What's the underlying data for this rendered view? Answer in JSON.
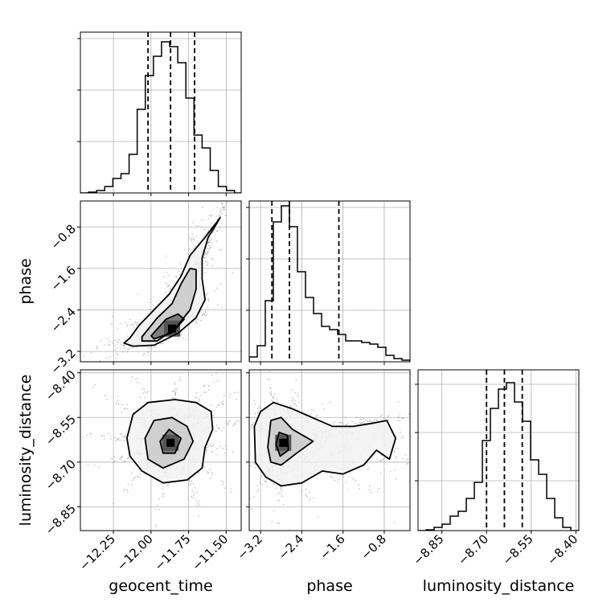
{
  "chart_data": {
    "type": "corner",
    "parameters": [
      "geocent_time",
      "phase",
      "luminosity_distance"
    ],
    "grid": true,
    "colors": {
      "hist": "#000000",
      "contour": "#000000",
      "density": "#000000",
      "samples": "#9a9a9a",
      "grid": "#b0b0b0"
    },
    "panels": [
      {
        "id": "geocent_time-hist",
        "type": "histogram",
        "x_param": "geocent_time",
        "xlim": [
          -12.47,
          -11.4
        ],
        "ylim": [
          0,
          1.0
        ],
        "y_tick_values": [
          0.32,
          0.64,
          0.96
        ],
        "bin_edges": [
          -12.47,
          -12.416,
          -12.362,
          -12.308,
          -12.254,
          -12.2,
          -12.146,
          -12.092,
          -12.038,
          -11.984,
          -11.93,
          -11.876,
          -11.822,
          -11.768,
          -11.714,
          -11.66,
          -11.606,
          -11.552,
          -11.498,
          -11.444,
          -11.4
        ],
        "counts": [
          0.0,
          0.005,
          0.015,
          0.04,
          0.09,
          0.12,
          0.24,
          0.52,
          0.73,
          0.85,
          0.94,
          0.91,
          0.81,
          0.59,
          0.36,
          0.28,
          0.14,
          0.04,
          0.015,
          0.0
        ],
        "quantiles": [
          -12.02,
          -11.87,
          -11.71
        ]
      },
      {
        "id": "geocent_time-phase",
        "type": "2d-density",
        "x_param": "geocent_time",
        "y_param": "phase",
        "xlim": [
          -12.47,
          -11.4
        ],
        "ylim": [
          -3.4,
          -0.3
        ],
        "density_peak": [
          -11.86,
          -2.76
        ],
        "contours": [
          [
            [
              -12.14,
              -2.94
            ],
            [
              -12.08,
              -2.7
            ],
            [
              -11.98,
              -2.4
            ],
            [
              -11.88,
              -2.1
            ],
            [
              -11.8,
              -1.75
            ],
            [
              -11.74,
              -1.35
            ],
            [
              -11.64,
              -1.0
            ],
            [
              -11.56,
              -0.7
            ],
            [
              -11.54,
              -0.62
            ],
            [
              -11.56,
              -0.72
            ],
            [
              -11.62,
              -1.0
            ],
            [
              -11.66,
              -1.4
            ],
            [
              -11.66,
              -1.8
            ],
            [
              -11.64,
              -2.2
            ],
            [
              -11.7,
              -2.55
            ],
            [
              -11.82,
              -2.85
            ],
            [
              -11.98,
              -3.08
            ],
            [
              -12.12,
              -3.1
            ],
            [
              -12.18,
              -3.04
            ]
          ],
          [
            [
              -12.06,
              -2.92
            ],
            [
              -11.96,
              -2.56
            ],
            [
              -11.86,
              -2.28
            ],
            [
              -11.8,
              -1.9
            ],
            [
              -11.74,
              -1.6
            ],
            [
              -11.7,
              -1.62
            ],
            [
              -11.7,
              -2.0
            ],
            [
              -11.74,
              -2.4
            ],
            [
              -11.84,
              -2.76
            ],
            [
              -11.96,
              -3.0
            ],
            [
              -12.06,
              -3.0
            ]
          ],
          [
            [
              -12.0,
              -2.9
            ],
            [
              -11.9,
              -2.58
            ],
            [
              -11.82,
              -2.48
            ],
            [
              -11.78,
              -2.58
            ],
            [
              -11.86,
              -2.84
            ],
            [
              -11.98,
              -2.96
            ]
          ]
        ]
      },
      {
        "id": "phase-hist",
        "type": "histogram",
        "x_param": "phase",
        "xlim": [
          -3.42,
          -0.3
        ],
        "ylim": [
          0,
          1.0
        ],
        "y_tick_values": [
          0.32,
          0.64,
          0.96
        ],
        "bin_edges": [
          -3.42,
          -3.264,
          -3.108,
          -2.952,
          -2.796,
          -2.64,
          -2.484,
          -2.328,
          -2.172,
          -2.016,
          -1.86,
          -1.704,
          -1.548,
          -1.392,
          -1.236,
          -1.08,
          -0.924,
          -0.768,
          -0.612,
          -0.456,
          -0.3
        ],
        "counts": [
          0.03,
          0.1,
          0.38,
          0.87,
          0.97,
          0.84,
          0.56,
          0.4,
          0.3,
          0.22,
          0.2,
          0.17,
          0.13,
          0.13,
          0.12,
          0.11,
          0.09,
          0.04,
          0.02,
          0.01
        ],
        "quantiles": [
          -2.98,
          -2.64,
          -1.68
        ]
      },
      {
        "id": "geocent_time-luminosity_distance",
        "type": "2d-density",
        "x_param": "geocent_time",
        "y_param": "luminosity_distance",
        "xlim": [
          -12.47,
          -11.4
        ],
        "ylim": [
          -8.93,
          -8.39
        ],
        "density_peak": [
          -11.87,
          -8.635
        ],
        "contours": [
          [
            [
              -12.16,
              -8.62
            ],
            [
              -12.12,
              -8.54
            ],
            [
              -12.02,
              -8.5
            ],
            [
              -11.84,
              -8.49
            ],
            [
              -11.7,
              -8.5
            ],
            [
              -11.6,
              -8.53
            ],
            [
              -11.59,
              -8.59
            ],
            [
              -11.64,
              -8.65
            ],
            [
              -11.66,
              -8.72
            ],
            [
              -11.76,
              -8.76
            ],
            [
              -11.92,
              -8.77
            ],
            [
              -12.06,
              -8.73
            ],
            [
              -12.14,
              -8.68
            ]
          ],
          [
            [
              -12.04,
              -8.62
            ],
            [
              -11.98,
              -8.56
            ],
            [
              -11.86,
              -8.55
            ],
            [
              -11.76,
              -8.58
            ],
            [
              -11.72,
              -8.63
            ],
            [
              -11.78,
              -8.69
            ],
            [
              -11.92,
              -8.72
            ],
            [
              -12.02,
              -8.69
            ]
          ],
          [
            [
              -11.94,
              -8.63
            ],
            [
              -11.88,
              -8.59
            ],
            [
              -11.8,
              -8.62
            ],
            [
              -11.84,
              -8.67
            ],
            [
              -11.92,
              -8.67
            ]
          ]
        ]
      },
      {
        "id": "phase-luminosity_distance",
        "type": "2d-density",
        "x_param": "phase",
        "y_param": "luminosity_distance",
        "xlim": [
          -3.42,
          -0.3
        ],
        "ylim": [
          -8.93,
          -8.39
        ],
        "density_peak": [
          -2.76,
          -8.635
        ],
        "contours": [
          [
            [
              -3.3,
              -8.7
            ],
            [
              -3.32,
              -8.58
            ],
            [
              -3.2,
              -8.53
            ],
            [
              -2.95,
              -8.5
            ],
            [
              -2.6,
              -8.52
            ],
            [
              -2.2,
              -8.55
            ],
            [
              -1.8,
              -8.58
            ],
            [
              -1.4,
              -8.58
            ],
            [
              -1.05,
              -8.57
            ],
            [
              -0.75,
              -8.56
            ],
            [
              -0.58,
              -8.62
            ],
            [
              -0.7,
              -8.69
            ],
            [
              -0.95,
              -8.66
            ],
            [
              -1.2,
              -8.71
            ],
            [
              -1.6,
              -8.74
            ],
            [
              -2.0,
              -8.73
            ],
            [
              -2.4,
              -8.77
            ],
            [
              -2.8,
              -8.78
            ],
            [
              -3.1,
              -8.75
            ]
          ],
          [
            [
              -3.06,
              -8.65
            ],
            [
              -3.0,
              -8.56
            ],
            [
              -2.8,
              -8.55
            ],
            [
              -2.58,
              -8.59
            ],
            [
              -2.18,
              -8.63
            ],
            [
              -2.5,
              -8.67
            ],
            [
              -2.8,
              -8.71
            ],
            [
              -3.0,
              -8.7
            ]
          ],
          [
            [
              -2.9,
              -8.64
            ],
            [
              -2.84,
              -8.6
            ],
            [
              -2.68,
              -8.61
            ],
            [
              -2.66,
              -8.66
            ],
            [
              -2.82,
              -8.68
            ]
          ]
        ]
      },
      {
        "id": "luminosity_distance-hist",
        "type": "histogram",
        "x_param": "luminosity_distance",
        "xlim": [
          -8.93,
          -8.39
        ],
        "ylim": [
          0,
          1.0
        ],
        "y_tick_values": [
          0.31,
          0.61,
          0.91
        ],
        "bin_edges": [
          -8.93,
          -8.903,
          -8.876,
          -8.849,
          -8.822,
          -8.795,
          -8.768,
          -8.741,
          -8.714,
          -8.687,
          -8.66,
          -8.633,
          -8.606,
          -8.579,
          -8.552,
          -8.525,
          -8.498,
          -8.471,
          -8.444,
          -8.417,
          -8.39
        ],
        "counts": [
          0.0,
          0.005,
          0.02,
          0.04,
          0.09,
          0.12,
          0.2,
          0.3,
          0.56,
          0.76,
          0.88,
          0.92,
          0.8,
          0.68,
          0.44,
          0.35,
          0.2,
          0.08,
          0.02,
          0.0
        ],
        "quantiles": [
          -8.7,
          -8.64,
          -8.58
        ]
      }
    ],
    "axes": {
      "geocent_time": {
        "ticks": [
          -12.25,
          -12.0,
          -11.75,
          -11.5
        ],
        "tick_labels": [
          "−12.25",
          "−12.00",
          "−11.75",
          "−11.50"
        ]
      },
      "phase": {
        "ticks": [
          -3.2,
          -2.4,
          -1.6,
          -0.8
        ],
        "tick_labels": [
          "−3.2",
          "−2.4",
          "−1.6",
          "−0.8"
        ]
      },
      "luminosity_distance": {
        "ticks": [
          -8.85,
          -8.7,
          -8.55,
          -8.4
        ],
        "tick_labels": [
          "−8.85",
          "−8.70",
          "−8.55",
          "−8.40"
        ]
      }
    }
  }
}
